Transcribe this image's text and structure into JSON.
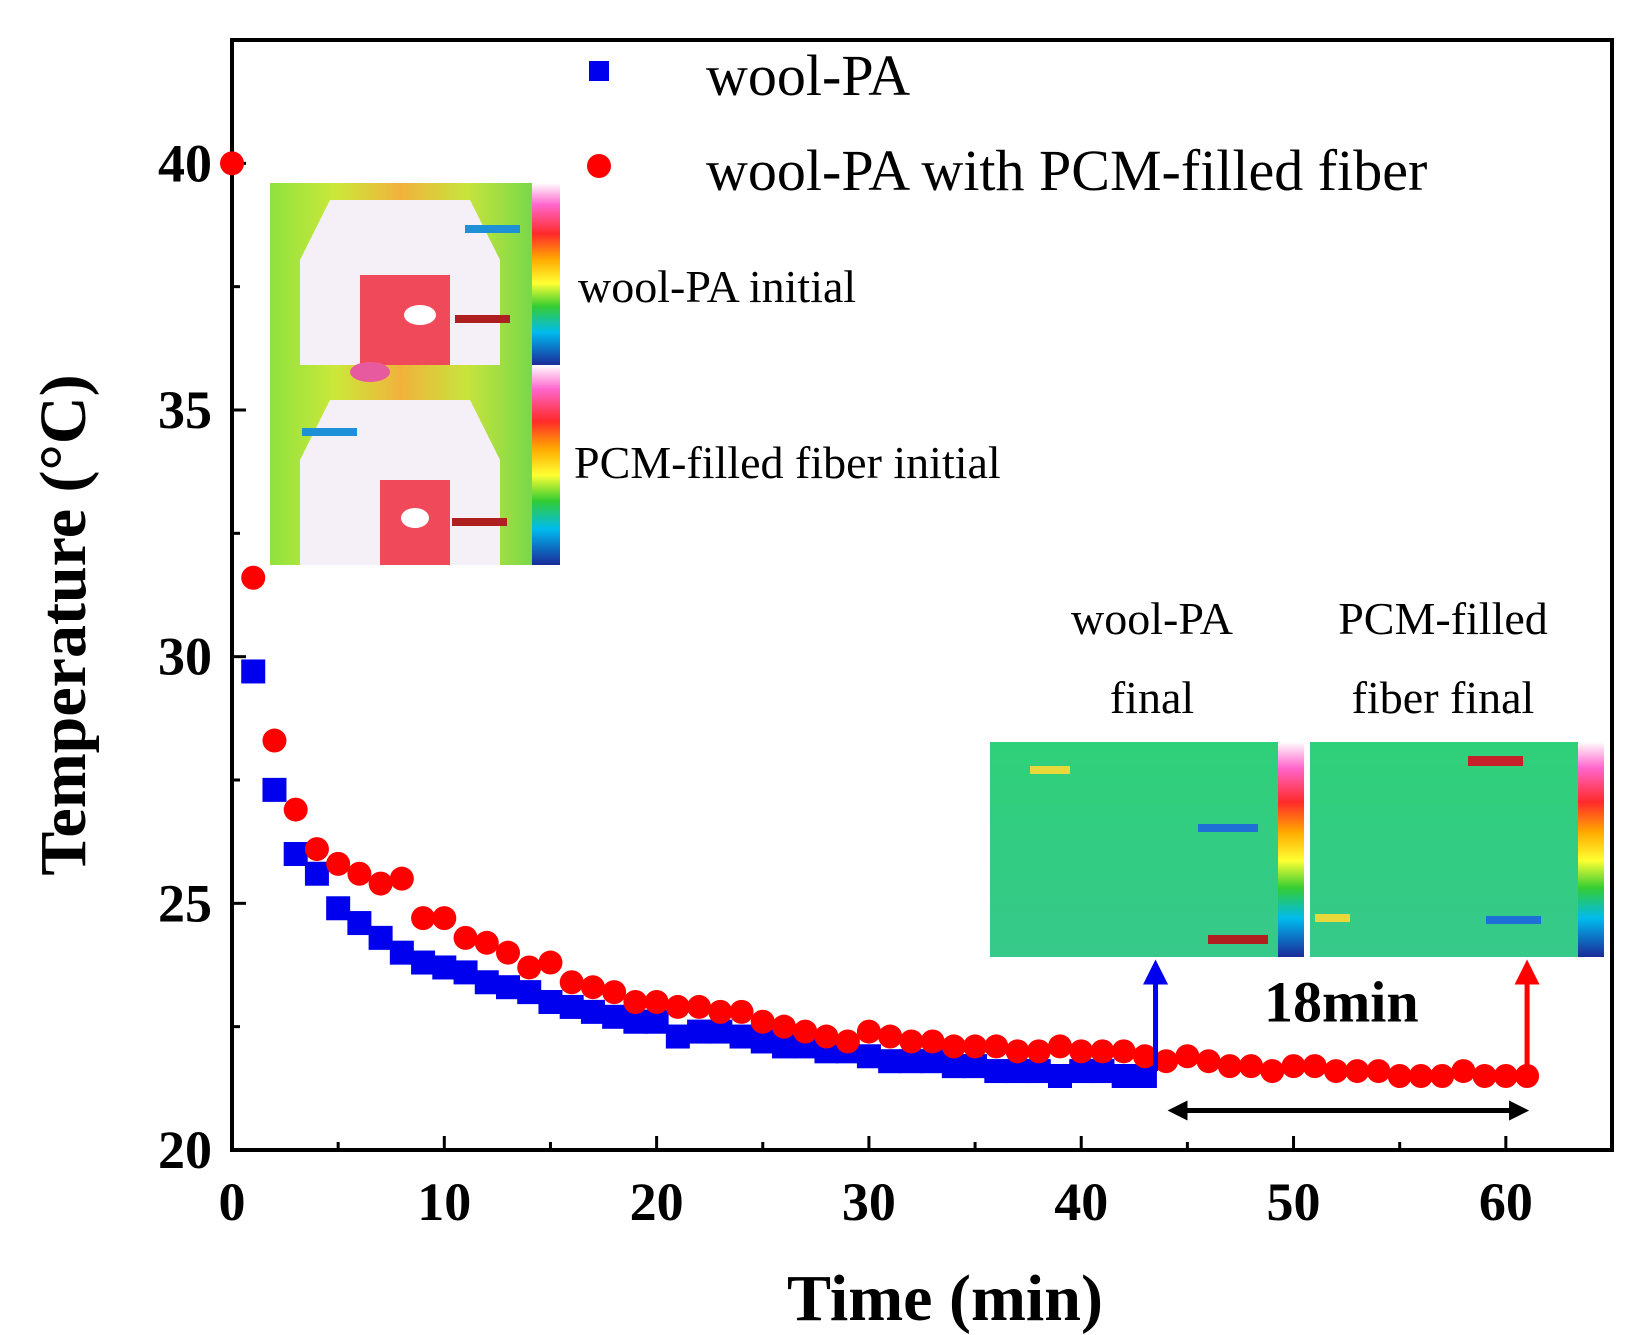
{
  "chart_data": {
    "type": "scatter",
    "xlabel": "Time (min)",
    "ylabel": "Temperature (°C)",
    "xlim": [
      0,
      65
    ],
    "ylim": [
      20,
      42.5
    ],
    "xticks": [
      0,
      10,
      20,
      30,
      40,
      50,
      60
    ],
    "yticks": [
      20,
      25,
      30,
      35,
      40
    ],
    "grid": false,
    "legend_position": "top-right",
    "series": [
      {
        "name": "wool-PA",
        "marker": "square",
        "color": "#0000ee",
        "x": [
          1,
          2,
          3,
          4,
          5,
          6,
          7,
          8,
          9,
          10,
          11,
          12,
          13,
          14,
          15,
          16,
          17,
          18,
          19,
          20,
          21,
          22,
          23,
          24,
          25,
          26,
          27,
          28,
          29,
          30,
          31,
          32,
          33,
          34,
          35,
          36,
          37,
          38,
          39,
          40,
          41,
          42,
          43
        ],
        "y": [
          29.7,
          27.3,
          26.0,
          25.6,
          24.9,
          24.6,
          24.3,
          24.0,
          23.8,
          23.7,
          23.6,
          23.4,
          23.3,
          23.2,
          23.0,
          22.9,
          22.8,
          22.7,
          22.6,
          22.6,
          22.3,
          22.4,
          22.4,
          22.3,
          22.2,
          22.1,
          22.1,
          22.0,
          22.0,
          21.9,
          21.8,
          21.8,
          21.8,
          21.7,
          21.7,
          21.6,
          21.6,
          21.6,
          21.5,
          21.6,
          21.6,
          21.5,
          21.5
        ]
      },
      {
        "name": "wool-PA with PCM-filled fiber",
        "marker": "circle",
        "color": "#ff0000",
        "x": [
          0,
          1,
          2,
          3,
          4,
          5,
          6,
          7,
          8,
          9,
          10,
          11,
          12,
          13,
          14,
          15,
          16,
          17,
          18,
          19,
          20,
          21,
          22,
          23,
          24,
          25,
          26,
          27,
          28,
          29,
          30,
          31,
          32,
          33,
          34,
          35,
          36,
          37,
          38,
          39,
          40,
          41,
          42,
          43,
          44,
          45,
          46,
          47,
          48,
          49,
          50,
          51,
          52,
          53,
          54,
          55,
          56,
          57,
          58,
          59,
          60,
          61
        ],
        "y": [
          40.0,
          31.6,
          28.3,
          26.9,
          26.1,
          25.8,
          25.6,
          25.4,
          25.5,
          24.7,
          24.7,
          24.3,
          24.2,
          24.0,
          23.7,
          23.8,
          23.4,
          23.3,
          23.2,
          23.0,
          23.0,
          22.9,
          22.9,
          22.8,
          22.8,
          22.6,
          22.5,
          22.4,
          22.3,
          22.2,
          22.4,
          22.3,
          22.2,
          22.2,
          22.1,
          22.1,
          22.1,
          22.0,
          22.0,
          22.1,
          22.0,
          22.0,
          22.0,
          21.9,
          21.8,
          21.9,
          21.8,
          21.7,
          21.7,
          21.6,
          21.7,
          21.7,
          21.6,
          21.6,
          21.6,
          21.5,
          21.5,
          21.5,
          21.6,
          21.5,
          21.5,
          21.5
        ]
      }
    ],
    "annotations": [
      {
        "text": "wool-PA initial"
      },
      {
        "text": "PCM-filled fiber initial"
      },
      {
        "text_lines": [
          "wool-PA",
          "final"
        ],
        "points_to_x": 43.5
      },
      {
        "text_lines": [
          "PCM-filled",
          "fiber final"
        ],
        "points_to_x": 61
      },
      {
        "text": "18min",
        "from_x": 43.5,
        "to_x": 61
      }
    ]
  },
  "inset_palette": {
    "green": "#4fd86a",
    "yellow": "#d9e02c",
    "orange": "#f2a13a",
    "hot": "#f03a68",
    "white": "#fff6fb",
    "final_green": "#33cc77"
  }
}
